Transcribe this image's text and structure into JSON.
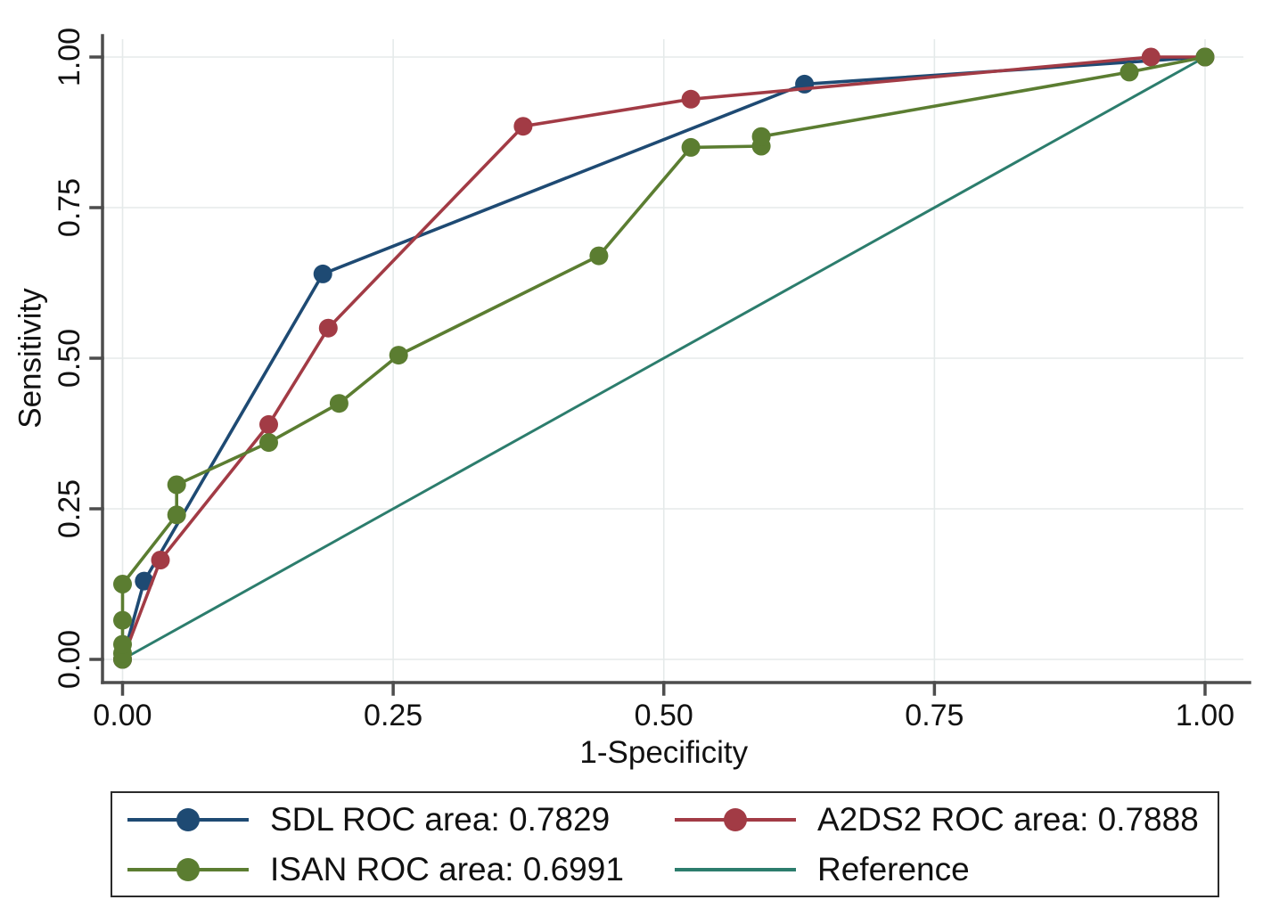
{
  "figure": {
    "type": "roc-comparison-plot",
    "background": "#ffffff",
    "axis_color": "#4d4d4d",
    "grid_color": "#e5eaea",
    "text_color": "#111111",
    "legend_border_color": "#2b2b2b"
  },
  "chart_data": {
    "type": "line",
    "title": "",
    "xlabel": "1-Specificity",
    "ylabel": "Sensitivity",
    "xlim": [
      0,
      1
    ],
    "ylim": [
      0,
      1
    ],
    "grid": true,
    "legend_position": "bottom",
    "x_ticks": {
      "values": [
        0,
        0.25,
        0.5,
        0.75,
        1
      ],
      "labels": [
        "0.00",
        "0.25",
        "0.50",
        "0.75",
        "1.00"
      ]
    },
    "y_ticks": {
      "values": [
        0,
        0.25,
        0.5,
        0.75,
        1
      ],
      "labels": [
        "0.00",
        "0.25",
        "0.50",
        "0.75",
        "1.00"
      ]
    },
    "series": [
      {
        "id": "sdl",
        "name": "SDL",
        "roc_area": 0.7829,
        "legend_label": "SDL ROC area: 0.7829",
        "color": "#1e4a73",
        "marker": true,
        "points": [
          [
            0,
            0
          ],
          [
            0.02,
            0.13
          ],
          [
            0.185,
            0.64
          ],
          [
            0.63,
            0.955
          ],
          [
            1,
            1
          ]
        ]
      },
      {
        "id": "a2ds2",
        "name": "A2DS2",
        "roc_area": 0.7888,
        "legend_label": "A2DS2 ROC area: 0.7888",
        "color": "#a23b45",
        "marker": true,
        "points": [
          [
            0,
            0
          ],
          [
            0.035,
            0.165
          ],
          [
            0.135,
            0.39
          ],
          [
            0.19,
            0.55
          ],
          [
            0.37,
            0.885
          ],
          [
            0.525,
            0.93
          ],
          [
            0.95,
            1
          ],
          [
            1,
            1
          ]
        ]
      },
      {
        "id": "isan",
        "name": "ISAN",
        "roc_area": 0.6991,
        "legend_label": "ISAN ROC area: 0.6991",
        "color": "#5b7d31",
        "marker": true,
        "points": [
          [
            0,
            0
          ],
          [
            0,
            0.01
          ],
          [
            0,
            0.025
          ],
          [
            0,
            0.065
          ],
          [
            0,
            0.125
          ],
          [
            0.05,
            0.24
          ],
          [
            0.05,
            0.29
          ],
          [
            0.135,
            0.36
          ],
          [
            0.2,
            0.425
          ],
          [
            0.255,
            0.505
          ],
          [
            0.44,
            0.67
          ],
          [
            0.525,
            0.85
          ],
          [
            0.59,
            0.852
          ],
          [
            0.59,
            0.868
          ],
          [
            0.93,
            0.975
          ],
          [
            1,
            1
          ]
        ]
      },
      {
        "id": "reference",
        "name": "Reference",
        "legend_label": "Reference",
        "color": "#2c7d6d",
        "marker": false,
        "points": [
          [
            0,
            0
          ],
          [
            1,
            1
          ]
        ]
      }
    ]
  }
}
